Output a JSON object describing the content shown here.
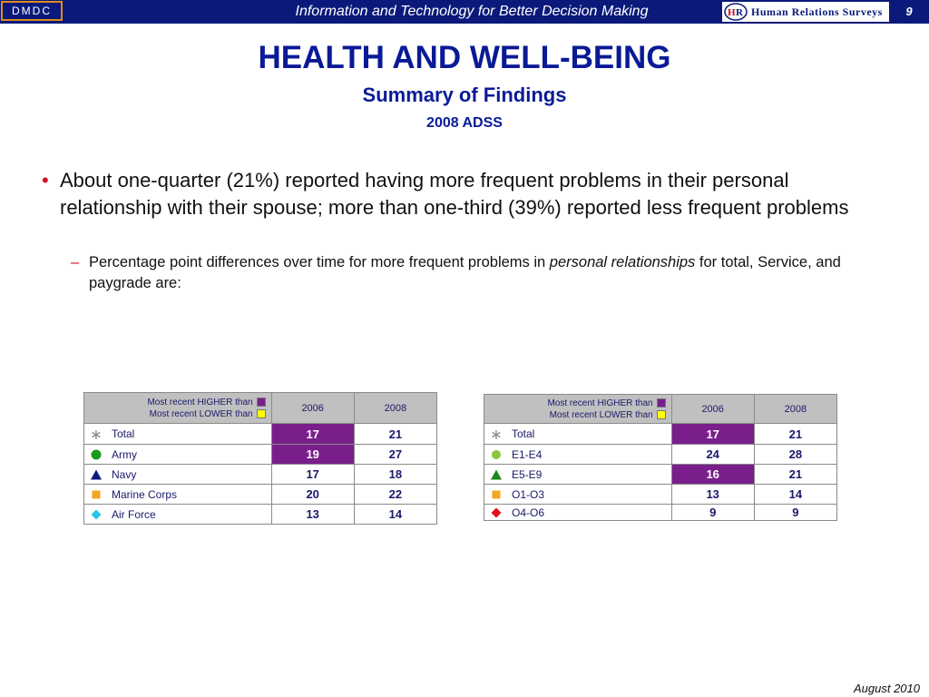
{
  "header": {
    "org": "DMDC",
    "tagline": "Information and Technology for Better Decision Making",
    "brand": "Human Relations Surveys",
    "page_number": "9"
  },
  "title": "HEALTH AND WELL-BEING",
  "subtitle": "Summary of Findings",
  "year": "2008 ADSS",
  "bullet_main": "About one-quarter (21%) reported having more frequent problems in their personal relationship with their spouse; more than one-third (39%) reported less frequent problems",
  "bullet_sub": {
    "before": "Percentage point differences over time for more frequent problems in ",
    "italic": "personal relationships",
    "after": " for total, Service, and paygrade are:"
  },
  "legend": {
    "higher": "Most recent HIGHER than",
    "lower": "Most recent LOWER than",
    "higher_color": "#7a1e8c",
    "lower_color": "#ffff00"
  },
  "table_service": {
    "columns": [
      "2006",
      "2008"
    ],
    "rows": [
      {
        "label": "Total",
        "icon": "asterisk-icon",
        "v2006": "17",
        "v2008": "21",
        "highlight2006": true
      },
      {
        "label": "Army",
        "icon": "green-circle-icon",
        "v2006": "19",
        "v2008": "27",
        "highlight2006": true
      },
      {
        "label": "Navy",
        "icon": "navy-triangle-icon",
        "v2006": "17",
        "v2008": "18",
        "highlight2006": false
      },
      {
        "label": "Marine Corps",
        "icon": "orange-square-icon",
        "v2006": "20",
        "v2008": "22",
        "highlight2006": false
      },
      {
        "label": "Air Force",
        "icon": "cyan-diamond-icon",
        "v2006": "13",
        "v2008": "14",
        "highlight2006": false
      }
    ]
  },
  "table_paygrade": {
    "columns": [
      "2006",
      "2008"
    ],
    "rows": [
      {
        "label": "Total",
        "icon": "asterisk-icon",
        "v2006": "17",
        "v2008": "21",
        "highlight2006": true
      },
      {
        "label": "E1-E4",
        "icon": "lightgreen-circle-icon",
        "v2006": "24",
        "v2008": "28",
        "highlight2006": false
      },
      {
        "label": "E5-E9",
        "icon": "green-triangle-icon",
        "v2006": "16",
        "v2008": "21",
        "highlight2006": true
      },
      {
        "label": "O1-O3",
        "icon": "orange-square-icon",
        "v2006": "13",
        "v2008": "14",
        "highlight2006": false
      },
      {
        "label": "O4-O6",
        "icon": "red-diamond-icon",
        "v2006": "9",
        "v2008": "9",
        "highlight2006": false
      }
    ]
  },
  "footer": "August 2010"
}
